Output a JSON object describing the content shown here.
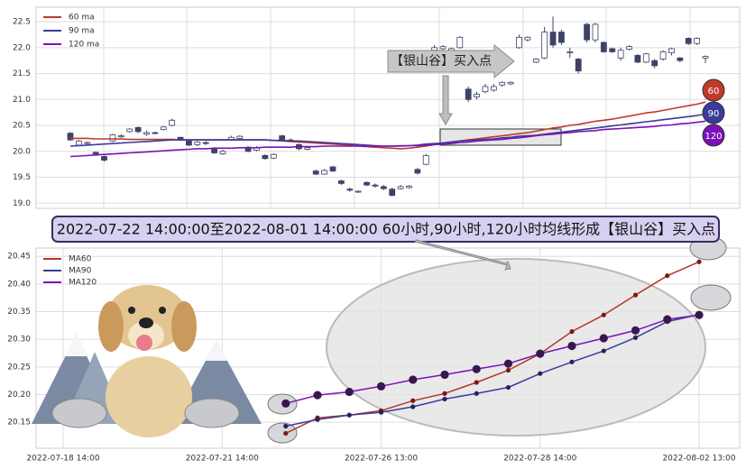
{
  "chart_data": [
    {
      "type": "candlestick",
      "annotation": "【银山谷】买入点",
      "grid": true,
      "legend": "upper left",
      "up_color": "#ffffff",
      "down_color": "#3d4366",
      "ylim": [
        18.9,
        22.78
      ],
      "yticks": [
        {
          "value": 19,
          "label": "19.0"
        },
        19.5,
        {
          "value": 20,
          "label": "20.0"
        },
        20.5,
        {
          "value": 21,
          "label": "21.0"
        },
        21.5,
        {
          "value": 22,
          "label": "22.0"
        },
        22.5
      ],
      "candles": [
        [
          20.35,
          20.22,
          20.37,
          20.2
        ],
        [
          20.12,
          20.2,
          20.22,
          20.1
        ],
        [
          20.15,
          20.17,
          20.19,
          20.13
        ],
        [
          19.98,
          19.95,
          20.0,
          19.93
        ],
        [
          19.9,
          19.83,
          19.92,
          19.8
        ],
        [
          20.2,
          20.32,
          20.34,
          20.18
        ],
        [
          20.28,
          20.3,
          20.33,
          20.26
        ],
        [
          20.38,
          20.43,
          20.45,
          20.36
        ],
        [
          20.46,
          20.38,
          20.48,
          20.35
        ],
        [
          20.33,
          20.36,
          20.4,
          20.3
        ],
        [
          20.36,
          20.35,
          20.38,
          20.33
        ],
        [
          20.42,
          20.47,
          20.49,
          20.4
        ],
        [
          20.5,
          20.6,
          20.63,
          20.48
        ],
        [
          20.27,
          20.22,
          20.28,
          20.2
        ],
        [
          20.2,
          20.12,
          20.22,
          20.1
        ],
        [
          20.13,
          20.18,
          20.2,
          20.1
        ],
        [
          20.17,
          20.15,
          20.2,
          20.12
        ],
        [
          20.06,
          19.97,
          20.08,
          19.95
        ],
        [
          19.95,
          20.0,
          20.03,
          19.93
        ],
        [
          20.22,
          20.27,
          20.3,
          20.2
        ],
        [
          20.25,
          20.29,
          20.31,
          20.22
        ],
        [
          20.08,
          20.0,
          20.1,
          19.98
        ],
        [
          20.02,
          20.07,
          20.1,
          20.0
        ],
        [
          19.92,
          19.86,
          19.94,
          19.84
        ],
        [
          19.87,
          19.94,
          19.96,
          19.85
        ],
        [
          20.3,
          20.23,
          20.32,
          20.2
        ],
        [
          20.22,
          20.2,
          20.25,
          20.18
        ],
        [
          20.13,
          20.05,
          20.15,
          20.02
        ],
        [
          20.04,
          20.07,
          20.1,
          20.02
        ],
        [
          19.62,
          19.56,
          19.65,
          19.54
        ],
        [
          19.56,
          19.63,
          19.66,
          19.55
        ],
        [
          19.7,
          19.62,
          19.72,
          19.6
        ],
        [
          19.43,
          19.38,
          19.45,
          19.35
        ],
        [
          19.27,
          19.25,
          19.3,
          19.22
        ],
        [
          19.22,
          19.23,
          19.25,
          19.2
        ],
        [
          19.4,
          19.35,
          19.42,
          19.33
        ],
        [
          19.35,
          19.33,
          19.38,
          19.3
        ],
        [
          19.32,
          19.28,
          19.35,
          19.25
        ],
        [
          19.27,
          19.15,
          19.3,
          19.13
        ],
        [
          19.28,
          19.32,
          19.35,
          19.26
        ],
        [
          19.3,
          19.33,
          19.35,
          19.28
        ],
        [
          19.65,
          19.58,
          19.68,
          19.55
        ],
        [
          19.75,
          19.92,
          19.95,
          19.73
        ],
        [
          21.95,
          22.0,
          22.05,
          21.93
        ],
        [
          21.98,
          22.02,
          22.05,
          21.95
        ],
        [
          21.93,
          21.98,
          22.0,
          21.9
        ],
        [
          22.0,
          22.2,
          22.22,
          21.98
        ],
        [
          21.2,
          21.0,
          21.25,
          20.95
        ],
        [
          21.05,
          21.1,
          21.15,
          21.0
        ],
        [
          21.15,
          21.25,
          21.3,
          21.12
        ],
        [
          21.18,
          21.25,
          21.3,
          21.15
        ],
        [
          21.28,
          21.33,
          21.35,
          21.25
        ],
        [
          21.3,
          21.33,
          21.35,
          21.28
        ],
        [
          22.0,
          22.2,
          22.25,
          21.98
        ],
        [
          22.15,
          22.2,
          22.22,
          22.12
        ],
        [
          21.72,
          21.78,
          21.8,
          21.7
        ],
        [
          21.8,
          22.3,
          22.4,
          21.78
        ],
        [
          22.3,
          22.05,
          22.6,
          22.0
        ],
        [
          22.3,
          22.1,
          22.35,
          22.05
        ],
        [
          21.9,
          21.92,
          22.0,
          21.8
        ],
        [
          21.78,
          21.55,
          21.8,
          21.5
        ],
        [
          22.45,
          22.15,
          22.48,
          22.1
        ],
        [
          22.15,
          22.45,
          22.48,
          22.1
        ],
        [
          22.1,
          21.92,
          22.12,
          21.9
        ],
        [
          21.98,
          21.92,
          22.0,
          21.9
        ],
        [
          21.8,
          21.95,
          22.0,
          21.75
        ],
        [
          21.97,
          22.02,
          22.05,
          21.95
        ],
        [
          21.85,
          21.72,
          21.88,
          21.7
        ],
        [
          21.72,
          21.88,
          21.9,
          21.7
        ],
        [
          21.75,
          21.65,
          21.78,
          21.6
        ],
        [
          21.78,
          21.92,
          21.95,
          21.75
        ],
        [
          21.9,
          21.98,
          22.0,
          21.85
        ],
        [
          21.8,
          21.75,
          21.82,
          21.72
        ],
        [
          22.18,
          22.08,
          22.2,
          22.05
        ],
        [
          22.08,
          22.18,
          22.2,
          22.05
        ],
        [
          21.8,
          21.83,
          21.85,
          21.7
        ]
      ],
      "series": [
        {
          "name": "60 ma",
          "end_label": "60",
          "color": "#c0392b",
          "values": [
            20.25,
            20.25,
            20.25,
            20.24,
            20.24,
            20.24,
            20.24,
            20.23,
            20.23,
            20.23,
            20.23,
            20.23,
            20.23,
            20.22,
            20.22,
            20.22,
            20.22,
            20.22,
            20.22,
            20.22,
            20.22,
            20.22,
            20.22,
            20.22,
            20.21,
            20.2,
            20.19,
            20.18,
            20.17,
            20.16,
            20.15,
            20.14,
            20.13,
            20.12,
            20.1,
            20.09,
            20.08,
            20.07,
            20.06,
            20.05,
            20.06,
            20.08,
            20.1,
            20.13,
            20.16,
            20.18,
            20.2,
            20.22,
            20.24,
            20.26,
            20.28,
            20.3,
            20.32,
            20.34,
            20.36,
            20.39,
            20.42,
            20.45,
            20.47,
            20.5,
            20.52,
            20.55,
            20.58,
            20.6,
            20.62,
            20.65,
            20.68,
            20.71,
            20.74,
            20.76,
            20.79,
            20.82,
            20.85,
            20.88,
            20.91,
            20.95
          ]
        },
        {
          "name": "90 ma",
          "end_label": "90",
          "color": "#3b3b9b",
          "values": [
            20.1,
            20.11,
            20.12,
            20.13,
            20.14,
            20.15,
            20.16,
            20.17,
            20.18,
            20.19,
            20.2,
            20.21,
            20.22,
            20.22,
            20.22,
            20.22,
            20.22,
            20.22,
            20.22,
            20.22,
            20.22,
            20.22,
            20.22,
            20.22,
            20.21,
            20.21,
            20.2,
            20.2,
            20.19,
            20.18,
            20.17,
            20.16,
            20.15,
            20.14,
            20.13,
            20.12,
            20.11,
            20.1,
            20.1,
            20.1,
            20.11,
            20.12,
            20.14,
            20.15,
            20.16,
            20.18,
            20.2,
            20.21,
            20.22,
            20.23,
            20.24,
            20.26,
            20.27,
            20.29,
            20.3,
            20.31,
            20.33,
            20.35,
            20.37,
            20.39,
            20.41,
            20.43,
            20.45,
            20.47,
            20.49,
            20.51,
            20.53,
            20.55,
            20.57,
            20.59,
            20.61,
            20.63,
            20.65,
            20.67,
            20.69,
            20.72
          ]
        },
        {
          "name": "120 ma",
          "end_label": "120",
          "color": "#7a12b8",
          "values": [
            19.9,
            19.91,
            19.92,
            19.93,
            19.94,
            19.95,
            19.96,
            19.97,
            19.98,
            19.99,
            20.0,
            20.01,
            20.02,
            20.03,
            20.04,
            20.05,
            20.05,
            20.06,
            20.06,
            20.06,
            20.07,
            20.07,
            20.07,
            20.08,
            20.08,
            20.08,
            20.08,
            20.09,
            20.09,
            20.09,
            20.1,
            20.1,
            20.1,
            20.1,
            20.1,
            20.1,
            20.1,
            20.1,
            20.1,
            20.11,
            20.11,
            20.11,
            20.12,
            20.13,
            20.14,
            20.15,
            20.17,
            20.18,
            20.2,
            20.21,
            20.22,
            20.23,
            20.25,
            20.26,
            20.28,
            20.3,
            20.32,
            20.33,
            20.35,
            20.36,
            20.38,
            20.39,
            20.4,
            20.42,
            20.43,
            20.44,
            20.45,
            20.46,
            20.47,
            20.48,
            20.5,
            20.51,
            20.53,
            20.54,
            20.56,
            20.58
          ]
        }
      ]
    },
    {
      "type": "line",
      "title": "2022-07-22 14:00:00至2022-08-01 14:00:00 60小时,90小时,120小时均线形成【银山谷】买入点",
      "grid": true,
      "legend": "upper left",
      "categories": [
        "2022-07-18 14:00",
        null,
        null,
        null,
        null,
        "2022-07-21 14:00",
        null,
        null,
        null,
        null,
        "2022-07-26 13:00",
        null,
        null,
        null,
        null,
        "2022-07-28 14:00",
        null,
        null,
        null,
        null,
        "2022-08-02 13:00"
      ],
      "ylim": [
        20.103,
        20.465
      ],
      "yticks": [
        20.15,
        {
          "value": 20.2,
          "label": "20.20"
        },
        20.25,
        {
          "value": 20.3,
          "label": "20.30"
        },
        20.35,
        {
          "value": 20.4,
          "label": "20.40"
        },
        20.45
      ],
      "series": [
        {
          "name": "MA60",
          "color": "#b5352a",
          "values": [
            null,
            null,
            null,
            null,
            null,
            null,
            null,
            20.13,
            20.158,
            20.163,
            20.171,
            20.189,
            20.202,
            20.222,
            20.244,
            20.274,
            20.314,
            20.344,
            20.38,
            20.415,
            20.44
          ]
        },
        {
          "name": "MA90",
          "color": "#3b3b9b",
          "values": [
            null,
            null,
            null,
            null,
            null,
            null,
            null,
            20.143,
            20.155,
            20.163,
            20.168,
            20.178,
            20.192,
            20.202,
            20.213,
            20.238,
            20.259,
            20.279,
            20.303,
            20.332,
            20.345
          ]
        },
        {
          "name": "MA120",
          "color": "#7a12b8",
          "values": [
            null,
            null,
            null,
            null,
            null,
            null,
            null,
            20.184,
            20.199,
            20.205,
            20.215,
            20.227,
            20.236,
            20.246,
            20.256,
            20.274,
            20.288,
            20.302,
            20.316,
            20.336,
            20.344
          ]
        }
      ]
    }
  ]
}
